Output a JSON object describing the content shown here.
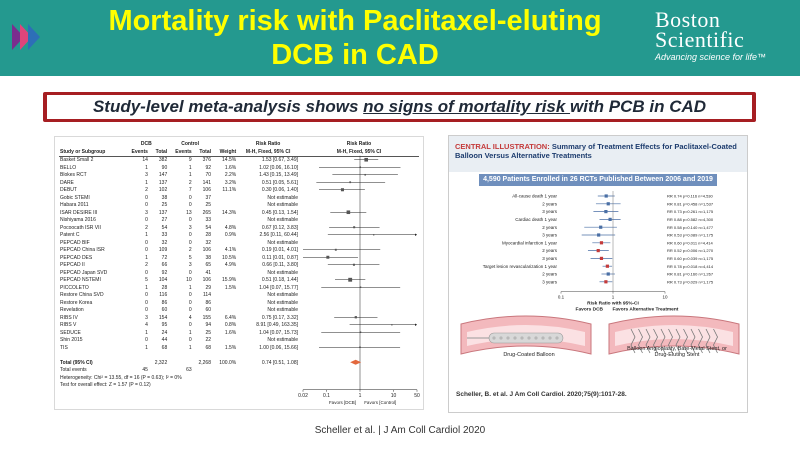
{
  "header": {
    "title_line1": "Mortality risk with Paclitaxel-eluting",
    "title_line2": "DCB in CAD",
    "brand_line1": "Boston",
    "brand_line2": "Scientific",
    "tagline": "Advancing science for life™",
    "brand_color": "#24998f",
    "title_color": "#ffff00"
  },
  "banner": {
    "text_before": "Study-level meta-analysis shows ",
    "text_underlined1": "no signs of mortality risk ",
    "text_after": "with PCB in CAD",
    "border_color": "#a61e22"
  },
  "forest": {
    "headers": {
      "study": "Study or Subgroup",
      "dcb": "DCB",
      "control": "Control",
      "events": "Events",
      "total": "Total",
      "weight": "Weight",
      "rr": "Risk Ratio",
      "rr_sub": "M-H, Fixed, 95% CI"
    },
    "rows": [
      {
        "study": "Basket Small 2",
        "e1": "14",
        "t1": "382",
        "e2": "9",
        "t2": "376",
        "w": "14.5%",
        "ci": "1.53 [0.67, 3.49]",
        "est": 1.53,
        "lo": 0.67,
        "hi": 3.49
      },
      {
        "study": "BELLO",
        "e1": "1",
        "t1": "90",
        "e2": "1",
        "t2": "92",
        "w": "1.6%",
        "ci": "1.02 [0.06, 16.10]",
        "est": 1.02,
        "lo": 0.06,
        "hi": 16.1
      },
      {
        "study": "Blokes RCT",
        "e1": "3",
        "t1": "147",
        "e2": "1",
        "t2": "70",
        "w": "2.2%",
        "ci": "1.43 [0.15, 13.49]",
        "est": 1.43,
        "lo": 0.15,
        "hi": 13.49
      },
      {
        "study": "DARE",
        "e1": "1",
        "t1": "137",
        "e2": "2",
        "t2": "141",
        "w": "3.2%",
        "ci": "0.51 [0.05, 5.61]",
        "est": 0.51,
        "lo": 0.05,
        "hi": 5.61
      },
      {
        "study": "DEBUT",
        "e1": "2",
        "t1": "102",
        "e2": "7",
        "t2": "106",
        "w": "11.1%",
        "ci": "0.30 [0.06, 1.40]",
        "est": 0.3,
        "lo": 0.06,
        "hi": 1.4
      },
      {
        "study": "Gobic STEMI",
        "e1": "0",
        "t1": "38",
        "e2": "0",
        "t2": "37",
        "w": "",
        "ci": "Not estimable",
        "est": null,
        "lo": null,
        "hi": null
      },
      {
        "study": "Habara 2011",
        "e1": "0",
        "t1": "25",
        "e2": "0",
        "t2": "25",
        "w": "",
        "ci": "Not estimable",
        "est": null,
        "lo": null,
        "hi": null
      },
      {
        "study": "ISAR DESIRE III",
        "e1": "3",
        "t1": "137",
        "e2": "13",
        "t2": "265",
        "w": "14.3%",
        "ci": "0.45 [0.13, 1.54]",
        "est": 0.45,
        "lo": 0.13,
        "hi": 1.54
      },
      {
        "study": "Nishiyama 2016",
        "e1": "0",
        "t1": "27",
        "e2": "0",
        "t2": "33",
        "w": "",
        "ci": "Not estimable",
        "est": null,
        "lo": null,
        "hi": null
      },
      {
        "study": "Pocoocath ISR VII",
        "e1": "2",
        "t1": "54",
        "e2": "3",
        "t2": "54",
        "w": "4.8%",
        "ci": "0.67 [0.12, 3.83]",
        "est": 0.67,
        "lo": 0.12,
        "hi": 3.83
      },
      {
        "study": "Patent C",
        "e1": "1",
        "t1": "33",
        "e2": "0",
        "t2": "28",
        "w": "0.9%",
        "ci": "2.56 [0.11, 60.44]",
        "est": 2.56,
        "lo": 0.11,
        "hi": 60.44
      },
      {
        "study": "PEPCAD BIF",
        "e1": "0",
        "t1": "32",
        "e2": "0",
        "t2": "32",
        "w": "",
        "ci": "Not estimable",
        "est": null,
        "lo": null,
        "hi": null
      },
      {
        "study": "PEPCAD China ISR",
        "e1": "0",
        "t1": "109",
        "e2": "2",
        "t2": "106",
        "w": "4.1%",
        "ci": "0.19 [0.01, 4.01]",
        "est": 0.19,
        "lo": 0.01,
        "hi": 4.01
      },
      {
        "study": "PEPCAD DES",
        "e1": "1",
        "t1": "72",
        "e2": "5",
        "t2": "38",
        "w": "10.5%",
        "ci": "0.11 [0.01, 0.87]",
        "est": 0.11,
        "lo": 0.01,
        "hi": 0.87
      },
      {
        "study": "PEPCAD II",
        "e1": "2",
        "t1": "66",
        "e2": "3",
        "t2": "65",
        "w": "4.9%",
        "ci": "0.66 [0.11, 3.80]",
        "est": 0.66,
        "lo": 0.11,
        "hi": 3.8
      },
      {
        "study": "PEPCAD Japan SVD",
        "e1": "0",
        "t1": "92",
        "e2": "0",
        "t2": "41",
        "w": "",
        "ci": "Not estimable",
        "est": null,
        "lo": null,
        "hi": null
      },
      {
        "study": "PEPCAD NSTEMI",
        "e1": "5",
        "t1": "104",
        "e2": "10",
        "t2": "106",
        "w": "15.9%",
        "ci": "0.51 [0.18, 1.44]",
        "est": 0.51,
        "lo": 0.18,
        "hi": 1.44
      },
      {
        "study": "PICCOLETO",
        "e1": "1",
        "t1": "28",
        "e2": "1",
        "t2": "29",
        "w": "1.5%",
        "ci": "1.04 [0.07, 15.77]",
        "est": 1.04,
        "lo": 0.07,
        "hi": 15.77
      },
      {
        "study": "Restore China SVD",
        "e1": "0",
        "t1": "116",
        "e2": "0",
        "t2": "114",
        "w": "",
        "ci": "Not estimable",
        "est": null,
        "lo": null,
        "hi": null
      },
      {
        "study": "Restore Korea",
        "e1": "0",
        "t1": "86",
        "e2": "0",
        "t2": "86",
        "w": "",
        "ci": "Not estimable",
        "est": null,
        "lo": null,
        "hi": null
      },
      {
        "study": "Revelation",
        "e1": "0",
        "t1": "60",
        "e2": "0",
        "t2": "60",
        "w": "",
        "ci": "Not estimable",
        "est": null,
        "lo": null,
        "hi": null
      },
      {
        "study": "RIBS IV",
        "e1": "3",
        "t1": "154",
        "e2": "4",
        "t2": "155",
        "w": "6.4%",
        "ci": "0.75 [0.17, 3.32]",
        "est": 0.75,
        "lo": 0.17,
        "hi": 3.32
      },
      {
        "study": "RIBS V",
        "e1": "4",
        "t1": "95",
        "e2": "0",
        "t2": "94",
        "w": "0.8%",
        "ci": "8.91 [0.49, 163.35]",
        "est": 8.91,
        "lo": 0.49,
        "hi": 163.35
      },
      {
        "study": "SEDUCE",
        "e1": "1",
        "t1": "24",
        "e2": "1",
        "t2": "25",
        "w": "1.6%",
        "ci": "1.04 [0.07, 15.73]",
        "est": 1.04,
        "lo": 0.07,
        "hi": 15.73
      },
      {
        "study": "Shin 2015",
        "e1": "0",
        "t1": "44",
        "e2": "0",
        "t2": "22",
        "w": "",
        "ci": "Not estimable",
        "est": null,
        "lo": null,
        "hi": null
      },
      {
        "study": "TIS",
        "e1": "1",
        "t1": "68",
        "e2": "1",
        "t2": "68",
        "w": "1.5%",
        "ci": "1.00 [0.06, 15.66]",
        "est": 1.0,
        "lo": 0.06,
        "hi": 15.66
      }
    ],
    "total_label": "Total (95% CI)",
    "total_t1": "2,322",
    "total_t2": "2,268",
    "total_w": "100.0%",
    "total_ci": "0.74 [0.51, 1.08]",
    "total_est": 0.74,
    "total_lo": 0.51,
    "total_hi": 1.08,
    "total_events_label": "Total events",
    "total_events_1": "45",
    "total_events_2": "63",
    "heterogeneity": "Heterogeneity: Chi² = 13.55, df = 16 (P = 0.63); I² = 0%",
    "overall_test": "Test for overall effect: Z = 1.57 (P = 0.12)",
    "axis_ticks": [
      "0.02",
      "0.1",
      "1",
      "10",
      "50"
    ],
    "favors_left": "Favors [DCB]",
    "favors_right": "Favors [Control]",
    "diamond_color": "#e2683d"
  },
  "illustration": {
    "heading_label": "CENTRAL ILLUSTRATION:",
    "heading_text": "Summary of Treatment Effects for Paclitaxel-Coated Balloon Versus Alternative Treatments",
    "band_text": "4,590 Patients Enrolled in 26 RCTs Published Between 2006 and 2019",
    "band_color": "#6f8fbd",
    "outcomes": [
      {
        "label": "All-cause death 1 year",
        "stat": "RR 0.74  p=0.116  n=4,530",
        "est": 0.74,
        "lo": 0.51,
        "hi": 1.08
      },
      {
        "label": "2 years",
        "stat": "RR 0.81  p=0.458  n=1,537",
        "est": 0.81,
        "lo": 0.47,
        "hi": 1.4
      },
      {
        "label": "3 years",
        "stat": "RR 0.73  p=0.261  n=1,175",
        "est": 0.73,
        "lo": 0.42,
        "hi": 1.27
      },
      {
        "label": "Cardiac death 1 year",
        "stat": "RR 0.88  p=0.582  n=4,300",
        "est": 0.88,
        "lo": 0.55,
        "hi": 1.4
      },
      {
        "label": "2 years",
        "stat": "RR 0.58  p=0.140  n=1,477",
        "est": 0.58,
        "lo": 0.28,
        "hi": 1.19
      },
      {
        "label": "3 years",
        "stat": "RR 0.53  p=0.089  n=1,175",
        "est": 0.53,
        "lo": 0.25,
        "hi": 1.1
      },
      {
        "label": "Myocardial infarction 1 year",
        "stat": "RR 0.60  p=0.011  n=4,414",
        "est": 0.6,
        "lo": 0.4,
        "hi": 0.89
      },
      {
        "label": "2 years",
        "stat": "RR 0.52  p=0.006  n=1,270",
        "est": 0.52,
        "lo": 0.33,
        "hi": 0.83
      },
      {
        "label": "3 years",
        "stat": "RR 0.60  p=0.039  n=1,175",
        "est": 0.6,
        "lo": 0.37,
        "hi": 0.97
      },
      {
        "label": "Target lesion revascularization 1 year",
        "stat": "RR 0.78  p=0.018  n=4,414",
        "est": 0.78,
        "lo": 0.63,
        "hi": 0.96
      },
      {
        "label": "2 years",
        "stat": "RR 0.81  p=0.160  n=1,267",
        "est": 0.81,
        "lo": 0.6,
        "hi": 1.09
      },
      {
        "label": "3 years",
        "stat": "RR 0.73  p=0.029  n=1,175",
        "est": 0.73,
        "lo": 0.55,
        "hi": 0.97
      }
    ],
    "axis_ticks": [
      "0.1",
      "1",
      "10"
    ],
    "axis_label": "Risk Ratio with 95%-CI",
    "favors_left": "Favors DCB",
    "favors_right": "Favors Alternative Treatment",
    "cap_left": "Drug-Coated Balloon",
    "cap_right": "Balloon Angioplasty, Bare-Metal Stent, or Drug-Eluting Stent",
    "reference": "Scheller, B. et al. J Am Coll Cardiol. 2020;75(9):1017-28."
  },
  "citation": "Scheller et al. | J Am Coll Cardiol 2020"
}
